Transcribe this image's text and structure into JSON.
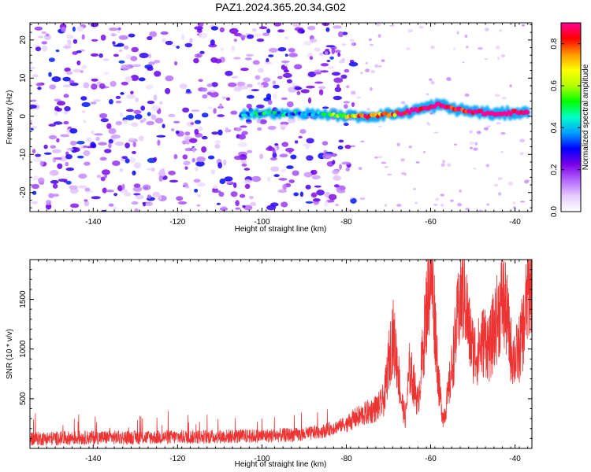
{
  "title": "PAZ1.2024.365.20.34.G02",
  "chart_data": [
    {
      "type": "heatmap",
      "xlabel": "Height of straight line (km)",
      "ylabel": "Frequency (Hz)",
      "xlim": [
        -155,
        -36
      ],
      "ylim": [
        -25,
        24.5
      ],
      "xticks": [
        -140,
        -120,
        -100,
        -80,
        -60,
        -40
      ],
      "xtick_labels": [
        "-140",
        "-120",
        "-100",
        "-80",
        "-60",
        "-40"
      ],
      "yticks": [
        -20,
        -10,
        0,
        10,
        20
      ],
      "ytick_labels": [
        "-20",
        "-10",
        "0",
        "10",
        "20"
      ],
      "ridge": [
        {
          "x": -105,
          "y": 0.5,
          "v": 0.25
        },
        {
          "x": -100,
          "y": 0.8,
          "v": 0.35
        },
        {
          "x": -95,
          "y": 0.6,
          "v": 0.3
        },
        {
          "x": -90,
          "y": 0.7,
          "v": 0.3
        },
        {
          "x": -85,
          "y": 0.5,
          "v": 0.4
        },
        {
          "x": -80,
          "y": 0.0,
          "v": 0.55
        },
        {
          "x": -75,
          "y": 0.0,
          "v": 0.7
        },
        {
          "x": -70,
          "y": 0.5,
          "v": 0.6
        },
        {
          "x": -66,
          "y": 1.0,
          "v": 0.8
        },
        {
          "x": -62,
          "y": 2.0,
          "v": 0.85
        },
        {
          "x": -58,
          "y": 3.0,
          "v": 0.9
        },
        {
          "x": -55,
          "y": 2.0,
          "v": 0.8
        },
        {
          "x": -52,
          "y": 1.5,
          "v": 0.8
        },
        {
          "x": -48,
          "y": 1.0,
          "v": 0.85
        },
        {
          "x": -44,
          "y": 0.5,
          "v": 0.9
        },
        {
          "x": -40,
          "y": 1.0,
          "v": 0.85
        },
        {
          "x": -37,
          "y": 0.8,
          "v": 0.8
        }
      ],
      "colorbar": {
        "label": "Normalized spectral amplitude",
        "range": [
          0.0,
          0.9
        ],
        "ticks": [
          0.0,
          0.2,
          0.4,
          0.6,
          0.8
        ],
        "tick_labels": [
          "0.0",
          "0.2",
          "0.4",
          "0.6",
          "0.8"
        ],
        "colors": [
          "#ffffff",
          "#e6ccff",
          "#b366ff",
          "#7a00e6",
          "#0000ff",
          "#00a0ff",
          "#00ffc8",
          "#00ff00",
          "#b4ff00",
          "#ffff00",
          "#ff9600",
          "#ff0000",
          "#ff0096"
        ]
      }
    },
    {
      "type": "line",
      "xlabel": "Height of straight line (km)",
      "ylabel": "SNR (10 * v/v)",
      "xlim": [
        -155,
        -36
      ],
      "ylim": [
        0,
        1900
      ],
      "xticks": [
        -140,
        -120,
        -100,
        -80,
        -60,
        -40
      ],
      "xtick_labels": [
        "-140",
        "-120",
        "-100",
        "-80",
        "-60",
        "-40"
      ],
      "yticks": [
        500,
        1000,
        1500
      ],
      "ytick_labels": [
        "500",
        "1000",
        "1500"
      ],
      "color": "#ee3333",
      "envelope": [
        [
          -155,
          100
        ],
        [
          -150,
          100
        ],
        [
          -140,
          110
        ],
        [
          -130,
          110
        ],
        [
          -120,
          115
        ],
        [
          -110,
          120
        ],
        [
          -100,
          125
        ],
        [
          -90,
          140
        ],
        [
          -85,
          180
        ],
        [
          -80,
          250
        ],
        [
          -78,
          300
        ],
        [
          -76,
          340
        ],
        [
          -74,
          380
        ],
        [
          -72,
          430
        ],
        [
          -71,
          500
        ],
        [
          -70,
          850
        ],
        [
          -69,
          1150
        ],
        [
          -68,
          900
        ],
        [
          -67,
          500
        ],
        [
          -66,
          300
        ],
        [
          -65,
          800
        ],
        [
          -64,
          650
        ],
        [
          -63,
          450
        ],
        [
          -62,
          900
        ],
        [
          -61,
          1400
        ],
        [
          -60,
          1850
        ],
        [
          -59,
          1300
        ],
        [
          -58,
          600
        ],
        [
          -57,
          300
        ],
        [
          -56,
          500
        ],
        [
          -55,
          800
        ],
        [
          -54,
          1150
        ],
        [
          -53,
          1500
        ],
        [
          -52,
          1600
        ],
        [
          -51,
          1200
        ],
        [
          -50,
          1000
        ],
        [
          -49,
          950
        ],
        [
          -48,
          1050
        ],
        [
          -47,
          1100
        ],
        [
          -46,
          1000
        ],
        [
          -45,
          1200
        ],
        [
          -44,
          1350
        ],
        [
          -43,
          1500
        ],
        [
          -42,
          1350
        ],
        [
          -41,
          1000
        ],
        [
          -40,
          900
        ],
        [
          -39,
          1000
        ],
        [
          -38,
          1200
        ],
        [
          -37,
          1550
        ],
        [
          -36,
          1800
        ]
      ]
    }
  ]
}
